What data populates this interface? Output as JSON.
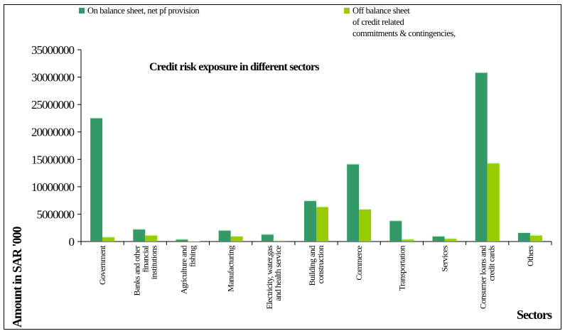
{
  "chart_data": {
    "type": "bar",
    "title": "Credit risk exposure in different sectors",
    "xlabel": "Sectors",
    "ylabel": "Amount in SAR '000",
    "ylim": [
      0,
      35000000
    ],
    "yticks": [
      "0",
      "5000000",
      "10000000",
      "15000000",
      "20000000",
      "25000000",
      "30000000",
      "35000000"
    ],
    "grid": false,
    "legend_placement": "top",
    "categories": [
      [
        "Government"
      ],
      [
        "Banks and other",
        "financial",
        "institutions"
      ],
      [
        "Agriculture and",
        "fishing"
      ],
      [
        "Manufacturing"
      ],
      [
        "Electricity, water,gas",
        "and health service"
      ],
      [
        "Building and",
        "construction"
      ],
      [
        "Commerce"
      ],
      [
        "Transportation"
      ],
      [
        "Services"
      ],
      [
        "Consumer loans and",
        "credit cards"
      ],
      [
        "Others"
      ]
    ],
    "series": [
      {
        "name": "On balance sheet, net pf provision",
        "color": "#339966",
        "values": [
          22600000,
          2300000,
          470000,
          2100000,
          1380000,
          7500000,
          14200000,
          3850000,
          1040000,
          30900000,
          1690000
        ]
      },
      {
        "name": "Off balance sheet of credit related commitments & contingencies,",
        "color": "#99cc00",
        "legend_lines": [
          "Off balance sheet",
          "of credit related",
          "commitments & contingencies,"
        ],
        "values": [
          870000,
          1200000,
          130000,
          1040000,
          260000,
          6400000,
          5960000,
          470000,
          600000,
          14350000,
          1200000
        ]
      }
    ]
  }
}
